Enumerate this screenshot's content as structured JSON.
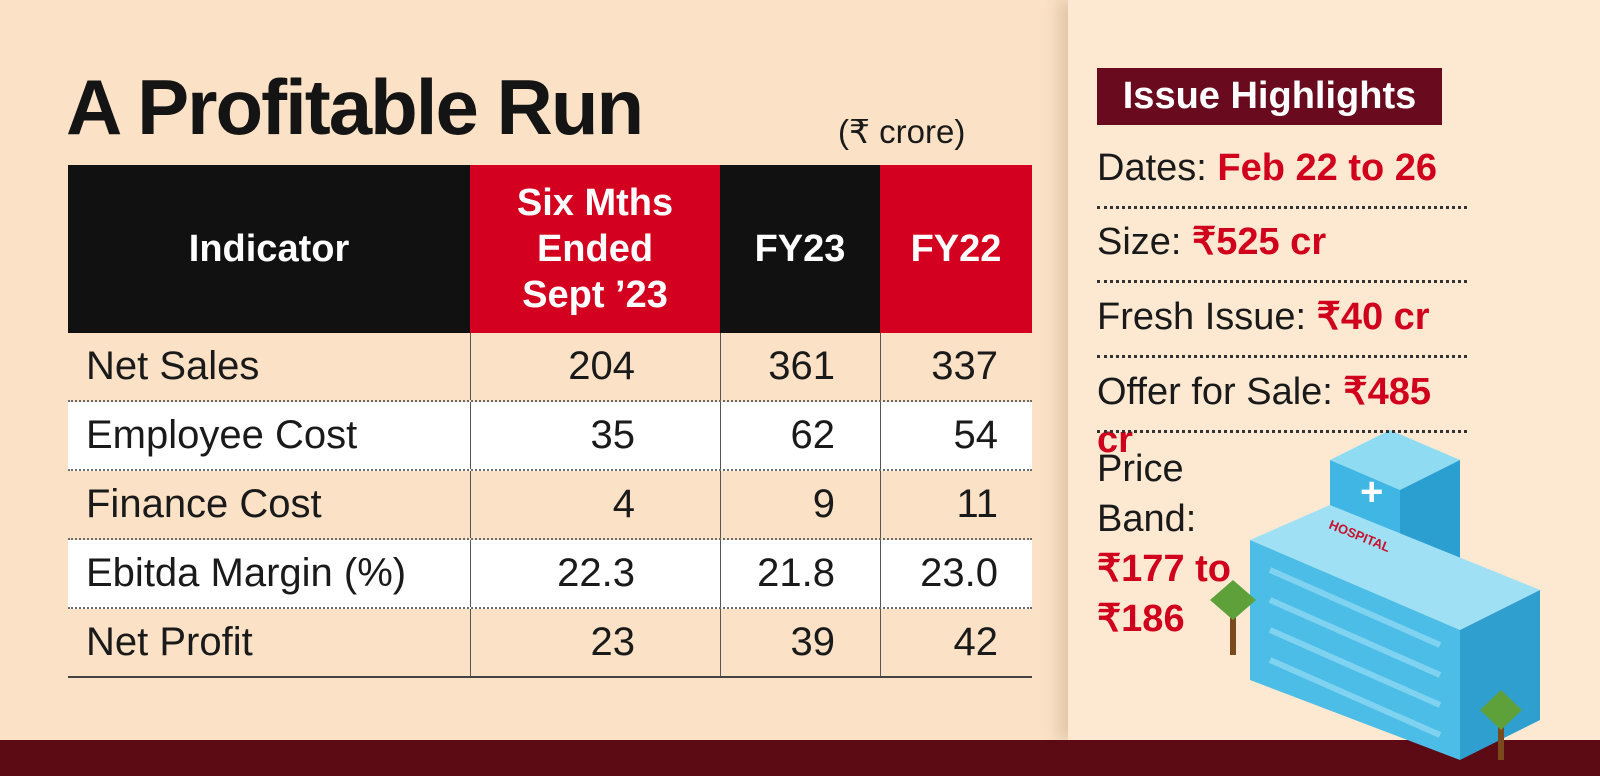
{
  "title": "A Profitable Run",
  "unit": "(₹ crore)",
  "table": {
    "header": [
      "Indicator",
      "Six Mths Ended Sept ’23",
      "FY23",
      "FY22"
    ],
    "rows": [
      [
        "Net Sales",
        "204",
        "361",
        "337"
      ],
      [
        "Employee Cost",
        "35",
        "62",
        "54"
      ],
      [
        "Finance Cost",
        "4",
        "9",
        "11"
      ],
      [
        "Ebitda Margin (%)",
        "22.3",
        "21.8",
        "23.0"
      ],
      [
        "Net Profit",
        "23",
        "39",
        "42"
      ]
    ]
  },
  "highlights": {
    "title": "Issue Highlights",
    "items": [
      {
        "label": "Dates:",
        "value": "Feb 22 to 26"
      },
      {
        "label": "Size:",
        "value": "₹525 cr"
      },
      {
        "label": "Fresh Issue:",
        "value": "₹40 cr"
      },
      {
        "label": "Offer for Sale:",
        "value": "₹485 cr"
      },
      {
        "label": "Price Band:",
        "value": "₹177 to ₹186"
      }
    ]
  },
  "illustration_label": "HOSPITAL"
}
